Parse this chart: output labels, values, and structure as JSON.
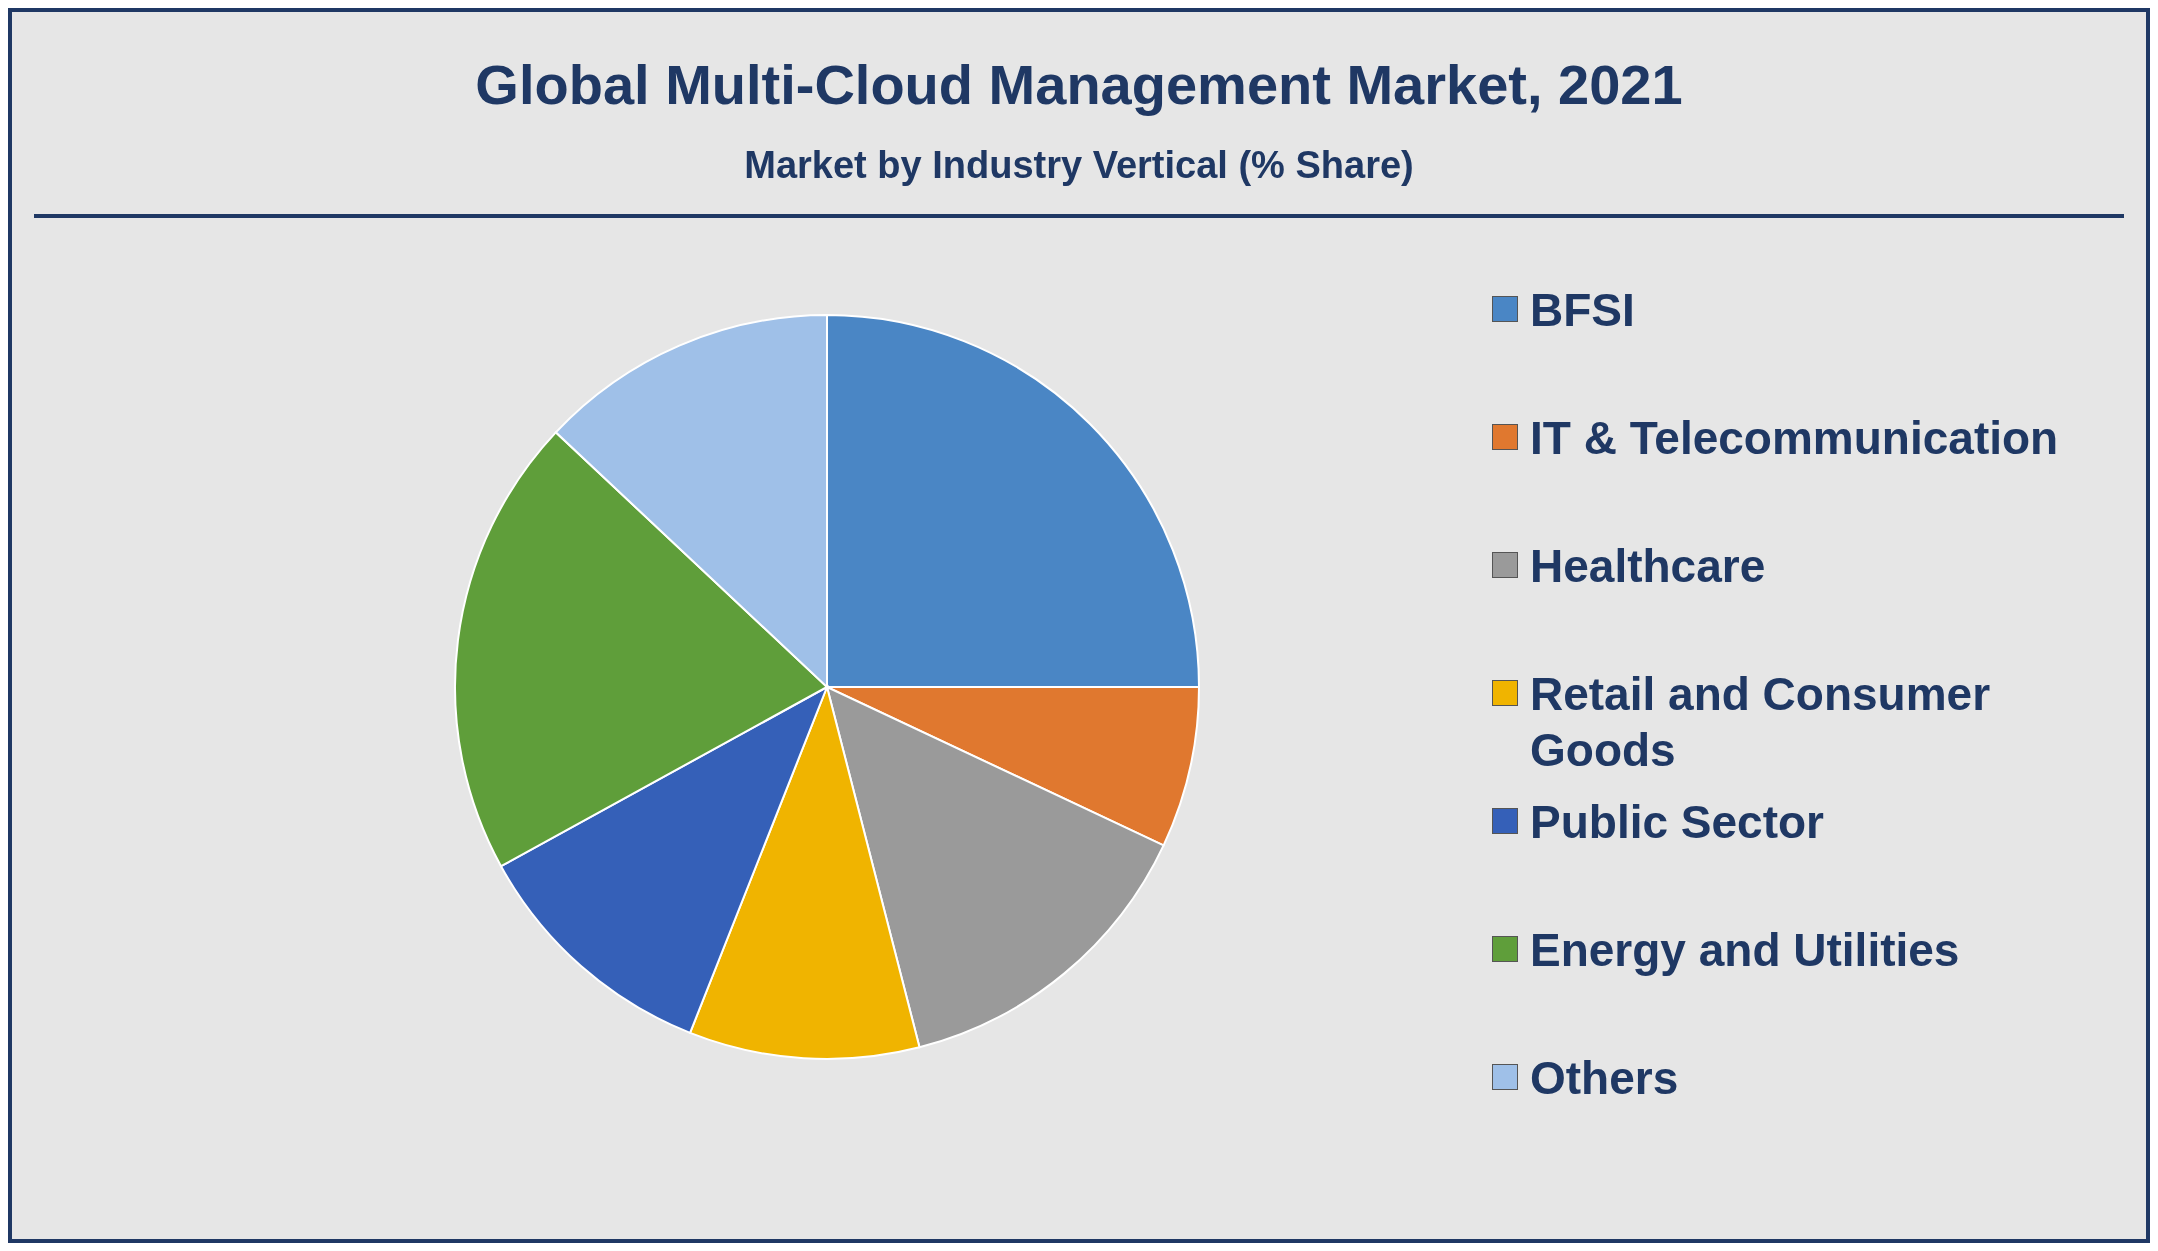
{
  "chart_data": {
    "type": "pie",
    "title": "Global Multi-Cloud Management Market, 2021",
    "subtitle": "Market by Industry Vertical (% Share)",
    "categories": [
      "BFSI",
      "IT & Telecommunication",
      "Healthcare",
      "Retail and Consumer Goods",
      "Public Sector",
      "Energy and Utilities",
      "Others"
    ],
    "values": [
      25,
      7,
      14,
      10,
      11,
      20,
      13
    ],
    "colors": [
      "#4a86c5",
      "#e0782f",
      "#9a9a9a",
      "#f0b400",
      "#3560b8",
      "#5f9e3a",
      "#9fc0e8"
    ],
    "legend": "right"
  }
}
